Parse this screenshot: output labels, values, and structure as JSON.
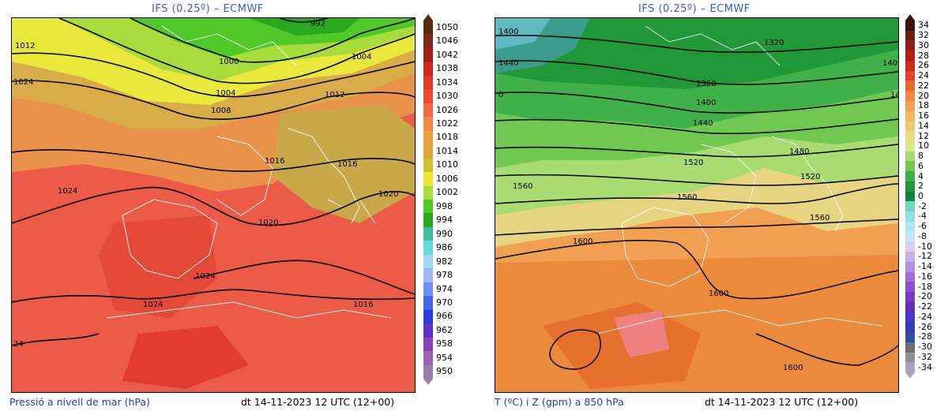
{
  "left": {
    "model_title": "IFS (0.25º) – ECMWF",
    "caption": "Pressió a nivell de mar (hPa)",
    "date": "dt 14-11-2023 12 UTC (12+00)",
    "colorbar_labels": [
      "1050",
      "1046",
      "1042",
      "1038",
      "1034",
      "1030",
      "1026",
      "1022",
      "1018",
      "1014",
      "1010",
      "1006",
      "1002",
      "998",
      "994",
      "990",
      "986",
      "982",
      "978",
      "974",
      "970",
      "966",
      "962",
      "958",
      "954",
      "950"
    ],
    "colorbar_colors": [
      "#5a2a10",
      "#7a2c1a",
      "#a02020",
      "#c8281e",
      "#e03a2c",
      "#ea4a3c",
      "#f26a4a",
      "#ee8846",
      "#e8a040",
      "#d8a838",
      "#cfc030",
      "#e8e630",
      "#a8dc3c",
      "#50c828",
      "#28a81c",
      "#3ec0a0",
      "#66d8e0",
      "#a0d8f0",
      "#9cb8f0",
      "#7090ee",
      "#4464e6",
      "#2a3ad8",
      "#6030c8",
      "#8c40b8",
      "#a060b0",
      "#9880a8"
    ],
    "isobars": [
      "1012",
      "1016",
      "1000",
      "1004",
      "1004",
      "1008",
      "1012",
      "1016",
      "1016",
      "1024",
      "1020",
      "1020",
      "1024",
      "1024",
      "1024",
      "24",
      "992"
    ]
  },
  "right": {
    "model_title": "IFS (0.25º) – ECMWF",
    "caption": "T (ºC) i Z (gpm) a 850 hPa",
    "date": "dt 14-11-2023 12 UTC (12+00)",
    "colorbar_labels": [
      "34",
      "32",
      "30",
      "28",
      "26",
      "24",
      "22",
      "20",
      "18",
      "16",
      "14",
      "12",
      "10",
      "8",
      "6",
      "4",
      "2",
      "0",
      "-2",
      "-4",
      "-6",
      "-8",
      "-10",
      "-12",
      "-14",
      "-16",
      "-18",
      "-20",
      "-22",
      "-24",
      "-26",
      "-28",
      "-30",
      "-32",
      "-34"
    ],
    "colorbar_colors": [
      "#401010",
      "#6a1c16",
      "#8c2018",
      "#b42018",
      "#d02a1c",
      "#e04428",
      "#ea6434",
      "#f08840",
      "#f4a050",
      "#f0b860",
      "#eccc70",
      "#e6dc80",
      "#d8e890",
      "#a8dc70",
      "#70c850",
      "#40b048",
      "#209838",
      "#108040",
      "#70d8c0",
      "#90e0e8",
      "#b0e8f0",
      "#c8e8f8",
      "#d8d0f4",
      "#c4b0ec",
      "#b090e0",
      "#9c70d8",
      "#8a50cc",
      "#7838c0",
      "#6030b0",
      "#4838c8",
      "#3a3ab8",
      "#3050a0",
      "#707070",
      "#909090",
      "#b0a0c0"
    ],
    "contours": [
      "1320",
      "1360",
      "1400",
      "1440",
      "1480",
      "1520",
      "1520",
      "1560",
      "1560",
      "1560",
      "1600",
      "1600",
      "1600",
      "1400",
      "1440",
      "140",
      "14",
      "0"
    ]
  }
}
